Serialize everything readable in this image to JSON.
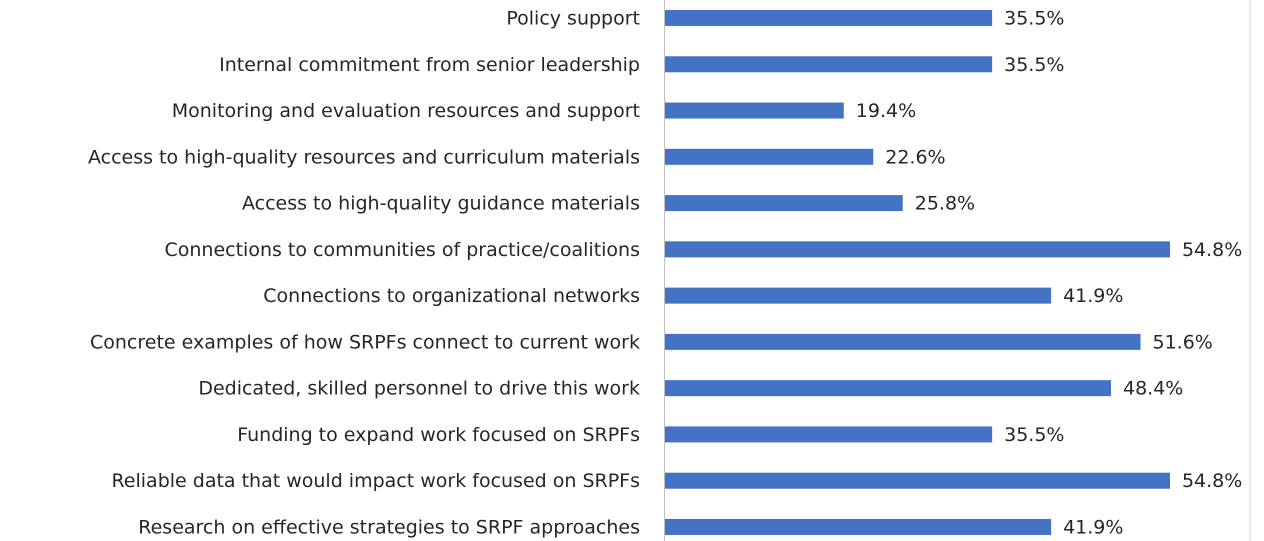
{
  "chart_data": {
    "type": "bar",
    "orientation": "horizontal",
    "color": "#4472c4",
    "categories": [
      "Policy support",
      "Internal commitment from senior leadership",
      "Monitoring and evaluation resources and support",
      "Access to high-quality resources and curriculum materials",
      "Access to high-quality guidance materials",
      "Connections to communities of practice/coalitions",
      "Connections to organizational networks",
      "Concrete examples of how SRPFs connect to current work",
      "Dedicated, skilled personnel to drive this work",
      "Funding to expand work focused on SRPFs",
      "Reliable data that would impact work focused on SRPFs",
      "Research on effective strategies to SRPF approaches"
    ],
    "values": [
      35.5,
      35.5,
      19.4,
      22.6,
      25.8,
      54.8,
      41.9,
      51.6,
      48.4,
      35.5,
      54.8,
      41.9
    ],
    "value_labels": [
      "35.5%",
      "35.5%",
      "19.4%",
      "22.6%",
      "25.8%",
      "54.8%",
      "41.9%",
      "51.6%",
      "48.4%",
      "35.5%",
      "54.8%",
      "41.9%"
    ]
  }
}
